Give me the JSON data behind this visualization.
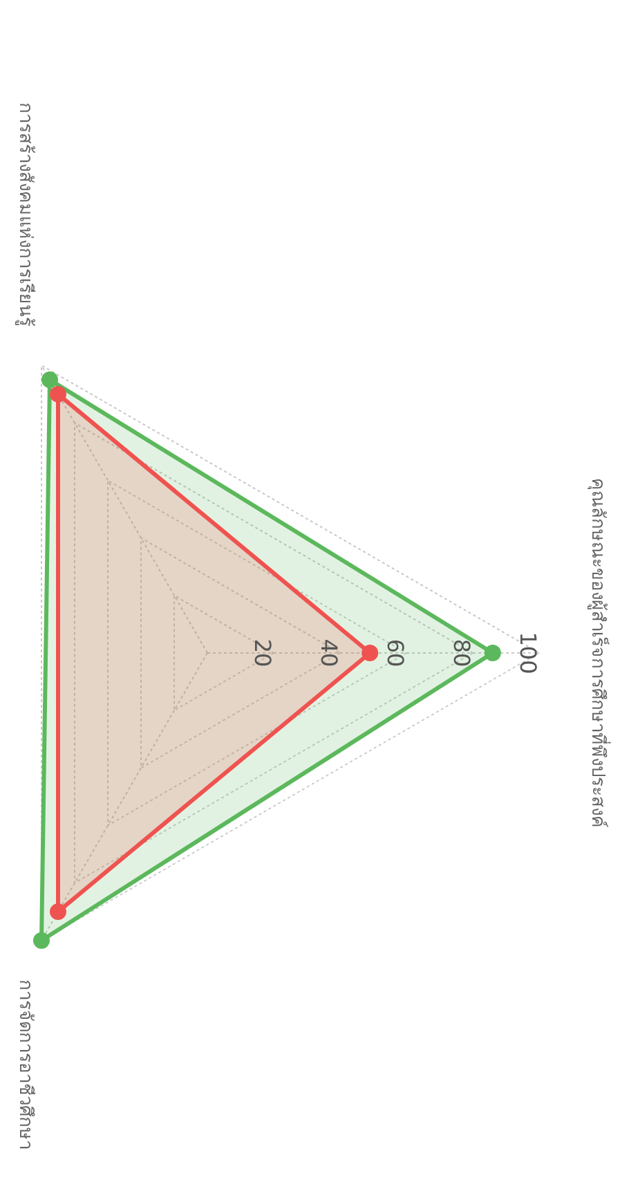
{
  "chart_data": {
    "type": "radar",
    "categories": [
      "คุณลักษณะของผู้สำเร็จการศึกษาที่พึงประสงค์",
      "การจัดการอาชีวศึกษา",
      "การสร้างสังคมแห่งการเรียนรู้"
    ],
    "series": [
      {
        "color": "#5cb85c",
        "values": [
          86,
          100,
          95
        ]
      },
      {
        "color": "#ef5350",
        "values": [
          49,
          90,
          90
        ]
      }
    ],
    "ylim": [
      0,
      100
    ],
    "yticks": [
      20,
      40,
      60,
      80,
      100
    ],
    "grid": true,
    "marker": "circle"
  }
}
